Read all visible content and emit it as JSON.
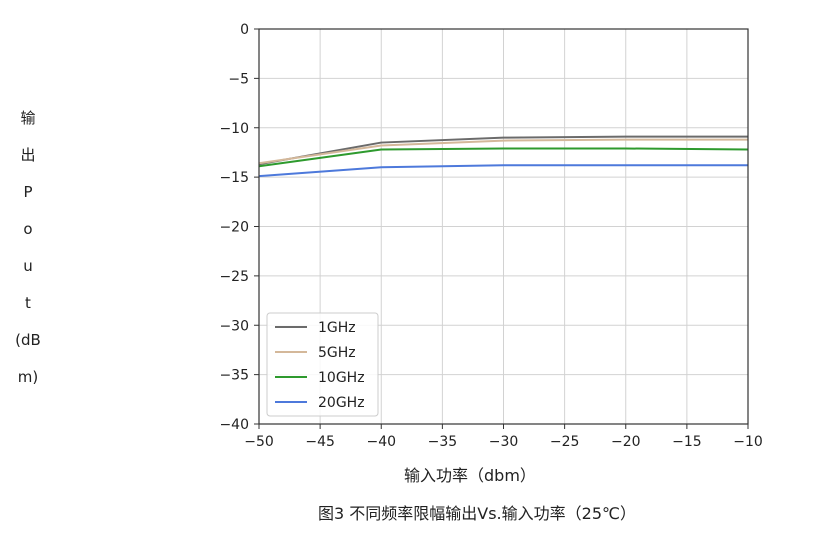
{
  "chart_data": {
    "type": "line",
    "xlabel": "输入功率（dbm）",
    "ylabel_chars": [
      "输",
      "出",
      "P",
      "o",
      "u",
      "t",
      "(dB",
      "m)"
    ],
    "caption": "图3 不同频率限幅输出Vs.输入功率（25℃）",
    "xlim": [
      -50,
      -10
    ],
    "ylim": [
      -40,
      0
    ],
    "xticks": [
      -50,
      -45,
      -40,
      -35,
      -30,
      -25,
      -20,
      -15,
      -10
    ],
    "yticks": [
      0,
      -5,
      -10,
      -15,
      -20,
      -25,
      -30,
      -35,
      -40
    ],
    "xtick_labels": [
      "−50",
      "−45",
      "−40",
      "−35",
      "−30",
      "−25",
      "−20",
      "−15",
      "−10"
    ],
    "ytick_labels": [
      "0",
      "−5",
      "−10",
      "−15",
      "−20",
      "−25",
      "−30",
      "−35",
      "−40"
    ],
    "grid": true,
    "legend_position": "lower-left",
    "series": [
      {
        "name": "1GHz",
        "color": "#6b6b6b",
        "x": [
          -50,
          -40,
          -30,
          -20,
          -10
        ],
        "y": [
          -13.7,
          -11.5,
          -11.0,
          -10.9,
          -10.9
        ]
      },
      {
        "name": "5GHz",
        "color": "#d4b89a",
        "x": [
          -50,
          -40,
          -30,
          -20,
          -10
        ],
        "y": [
          -13.6,
          -11.8,
          -11.3,
          -11.2,
          -11.2
        ]
      },
      {
        "name": "10GHz",
        "color": "#2e9a2e",
        "x": [
          -50,
          -40,
          -30,
          -20,
          -10
        ],
        "y": [
          -13.9,
          -12.2,
          -12.1,
          -12.1,
          -12.2
        ]
      },
      {
        "name": "20GHz",
        "color": "#4d79db",
        "x": [
          -50,
          -40,
          -30,
          -20,
          -10
        ],
        "y": [
          -14.9,
          -14.0,
          -13.8,
          -13.8,
          -13.8
        ]
      }
    ]
  }
}
